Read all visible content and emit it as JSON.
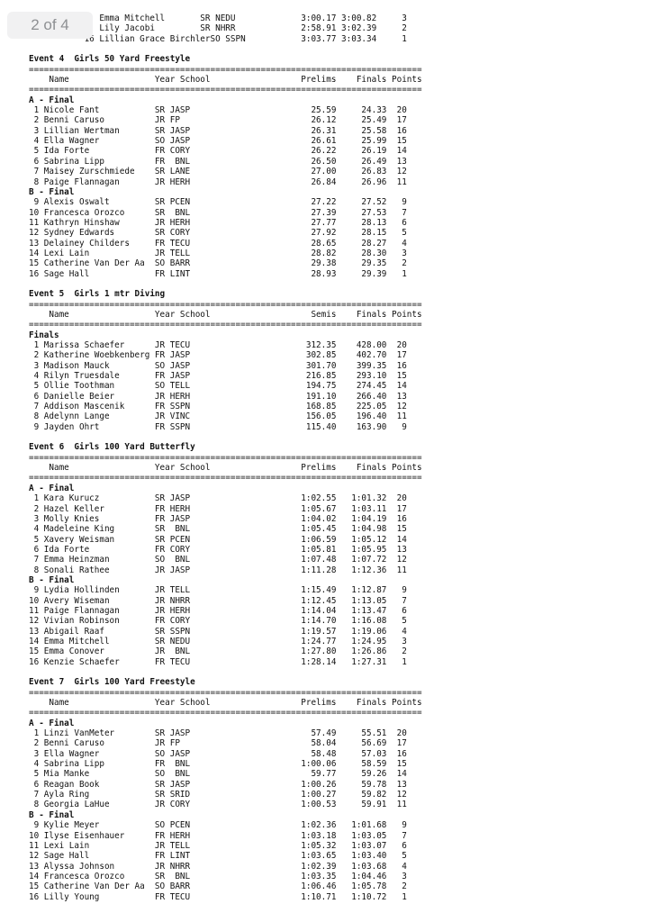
{
  "page_badge": {
    "label": "2 of 4"
  },
  "document": {
    "continuation_rows": [
      {
        "rank": "",
        "name": "Emma Mitchell",
        "year": "SR",
        "school": "NEDU",
        "seed": "3:00.17",
        "finals": "3:00.82",
        "points": "3"
      },
      {
        "rank": "",
        "name": "Lily Jacobi",
        "year": "SR",
        "school": "NHRR",
        "seed": "2:58.91",
        "finals": "3:02.39",
        "points": "2"
      },
      {
        "rank": "16",
        "name": "Lillian Grace Birchler",
        "year": "SO",
        "school": "SSPN",
        "seed": "3:03.77",
        "finals": "3:03.34",
        "points": "1"
      }
    ],
    "events": [
      {
        "title": "Event 4  Girls 50 Yard Freestyle",
        "columns": {
          "name": "Name",
          "year_school": "Year School",
          "seed": "Prelims",
          "finals": "Finals",
          "points": "Points"
        },
        "sections": [
          {
            "label": "A - Final",
            "rows": [
              {
                "rank": "1",
                "name": "Nicole Fant",
                "year": "SR",
                "school": "JASP",
                "seed": "25.59",
                "finals": "24.33",
                "points": "20"
              },
              {
                "rank": "2",
                "name": "Benni Caruso",
                "year": "JR",
                "school": "FP",
                "seed": "26.12",
                "finals": "25.49",
                "points": "17"
              },
              {
                "rank": "3",
                "name": "Lillian Wertman",
                "year": "SR",
                "school": "JASP",
                "seed": "26.31",
                "finals": "25.58",
                "points": "16"
              },
              {
                "rank": "4",
                "name": "Ella Wagner",
                "year": "SO",
                "school": "JASP",
                "seed": "26.61",
                "finals": "25.99",
                "points": "15"
              },
              {
                "rank": "5",
                "name": "Ida Forte",
                "year": "FR",
                "school": "CORY",
                "seed": "26.22",
                "finals": "26.19",
                "points": "14"
              },
              {
                "rank": "6",
                "name": "Sabrina Lipp",
                "year": "FR",
                "school": " BNL",
                "seed": "26.50",
                "finals": "26.49",
                "points": "13"
              },
              {
                "rank": "7",
                "name": "Maisey Zurschmiede",
                "year": "SR",
                "school": "LANE",
                "seed": "27.00",
                "finals": "26.83",
                "points": "12"
              },
              {
                "rank": "8",
                "name": "Paige Flannagan",
                "year": "JR",
                "school": "HERH",
                "seed": "26.84",
                "finals": "26.96",
                "points": "11"
              }
            ]
          },
          {
            "label": "B - Final",
            "rows": [
              {
                "rank": "9",
                "name": "Alexis Oswalt",
                "year": "SR",
                "school": "PCEN",
                "seed": "27.22",
                "finals": "27.52",
                "points": "9"
              },
              {
                "rank": "10",
                "name": "Francesca Orozco",
                "year": "SR",
                "school": " BNL",
                "seed": "27.39",
                "finals": "27.53",
                "points": "7"
              },
              {
                "rank": "11",
                "name": "Kathryn Hinshaw",
                "year": "JR",
                "school": "HERH",
                "seed": "27.77",
                "finals": "28.13",
                "points": "6"
              },
              {
                "rank": "12",
                "name": "Sydney Edwards",
                "year": "SR",
                "school": "CORY",
                "seed": "27.92",
                "finals": "28.15",
                "points": "5"
              },
              {
                "rank": "13",
                "name": "Delainey Childers",
                "year": "FR",
                "school": "TECU",
                "seed": "28.65",
                "finals": "28.27",
                "points": "4"
              },
              {
                "rank": "14",
                "name": "Lexi Lain",
                "year": "JR",
                "school": "TELL",
                "seed": "28.82",
                "finals": "28.30",
                "points": "3"
              },
              {
                "rank": "15",
                "name": "Catherine Van Der Aa",
                "year": "SO",
                "school": "BARR",
                "seed": "29.38",
                "finals": "29.35",
                "points": "2"
              },
              {
                "rank": "16",
                "name": "Sage Hall",
                "year": "FR",
                "school": "LINT",
                "seed": "28.93",
                "finals": "29.39",
                "points": "1"
              }
            ]
          }
        ]
      },
      {
        "title": "Event 5  Girls 1 mtr Diving",
        "columns": {
          "name": "Name",
          "year_school": "Year School",
          "seed": "Semis",
          "finals": "Finals",
          "points": "Points"
        },
        "sections": [
          {
            "label": "Finals",
            "rows": [
              {
                "rank": "1",
                "name": "Marissa Schaefer",
                "year": "JR",
                "school": "TECU",
                "seed": "312.35",
                "finals": "428.00",
                "points": "20"
              },
              {
                "rank": "2",
                "name": "Katherine Woebkenberg",
                "year": "FR",
                "school": "JASP",
                "seed": "302.85",
                "finals": "402.70",
                "points": "17"
              },
              {
                "rank": "3",
                "name": "Madison Mauck",
                "year": "SO",
                "school": "JASP",
                "seed": "301.70",
                "finals": "399.35",
                "points": "16"
              },
              {
                "rank": "4",
                "name": "Rilyn Truesdale",
                "year": "FR",
                "school": "JASP",
                "seed": "216.85",
                "finals": "293.10",
                "points": "15"
              },
              {
                "rank": "5",
                "name": "Ollie Toothman",
                "year": "SO",
                "school": "TELL",
                "seed": "194.75",
                "finals": "274.45",
                "points": "14"
              },
              {
                "rank": "6",
                "name": "Danielle Beier",
                "year": "JR",
                "school": "HERH",
                "seed": "191.10",
                "finals": "266.40",
                "points": "13"
              },
              {
                "rank": "7",
                "name": "Addison Mascenik",
                "year": "FR",
                "school": "SSPN",
                "seed": "168.85",
                "finals": "225.05",
                "points": "12"
              },
              {
                "rank": "8",
                "name": "Adelynn Lange",
                "year": "JR",
                "school": "VINC",
                "seed": "156.05",
                "finals": "196.40",
                "points": "11"
              },
              {
                "rank": "9",
                "name": "Jayden Ohrt",
                "year": "FR",
                "school": "SSPN",
                "seed": "115.40",
                "finals": "163.90",
                "points": "9"
              }
            ]
          }
        ]
      },
      {
        "title": "Event 6  Girls 100 Yard Butterfly",
        "columns": {
          "name": "Name",
          "year_school": "Year School",
          "seed": "Prelims",
          "finals": "Finals",
          "points": "Points"
        },
        "sections": [
          {
            "label": "A - Final",
            "rows": [
              {
                "rank": "1",
                "name": "Kara Kurucz",
                "year": "SR",
                "school": "JASP",
                "seed": "1:02.55",
                "finals": "1:01.32",
                "points": "20"
              },
              {
                "rank": "2",
                "name": "Hazel Keller",
                "year": "FR",
                "school": "HERH",
                "seed": "1:05.67",
                "finals": "1:03.11",
                "points": "17"
              },
              {
                "rank": "3",
                "name": "Molly Knies",
                "year": "FR",
                "school": "JASP",
                "seed": "1:04.02",
                "finals": "1:04.19",
                "points": "16"
              },
              {
                "rank": "4",
                "name": "Madeleine King",
                "year": "SR",
                "school": " BNL",
                "seed": "1:05.45",
                "finals": "1:04.98",
                "points": "15"
              },
              {
                "rank": "5",
                "name": "Xavery Weisman",
                "year": "SR",
                "school": "PCEN",
                "seed": "1:06.59",
                "finals": "1:05.12",
                "points": "14"
              },
              {
                "rank": "6",
                "name": "Ida Forte",
                "year": "FR",
                "school": "CORY",
                "seed": "1:05.81",
                "finals": "1:05.95",
                "points": "13"
              },
              {
                "rank": "7",
                "name": "Emma Heinzman",
                "year": "SO",
                "school": " BNL",
                "seed": "1:07.48",
                "finals": "1:07.72",
                "points": "12"
              },
              {
                "rank": "8",
                "name": "Sonali Rathee",
                "year": "JR",
                "school": "JASP",
                "seed": "1:11.28",
                "finals": "1:12.36",
                "points": "11"
              }
            ]
          },
          {
            "label": "B - Final",
            "rows": [
              {
                "rank": "9",
                "name": "Lydia Hollinden",
                "year": "JR",
                "school": "TELL",
                "seed": "1:15.49",
                "finals": "1:12.87",
                "points": "9"
              },
              {
                "rank": "10",
                "name": "Avery Wiseman",
                "year": "JR",
                "school": "NHRR",
                "seed": "1:12.45",
                "finals": "1:13.05",
                "points": "7"
              },
              {
                "rank": "11",
                "name": "Paige Flannagan",
                "year": "JR",
                "school": "HERH",
                "seed": "1:14.04",
                "finals": "1:13.47",
                "points": "6"
              },
              {
                "rank": "12",
                "name": "Vivian Robinson",
                "year": "FR",
                "school": "CORY",
                "seed": "1:14.70",
                "finals": "1:16.08",
                "points": "5"
              },
              {
                "rank": "13",
                "name": "Abigail Raaf",
                "year": "SR",
                "school": "SSPN",
                "seed": "1:19.57",
                "finals": "1:19.06",
                "points": "4"
              },
              {
                "rank": "14",
                "name": "Emma Mitchell",
                "year": "SR",
                "school": "NEDU",
                "seed": "1:24.77",
                "finals": "1:24.95",
                "points": "3"
              },
              {
                "rank": "15",
                "name": "Emma Conover",
                "year": "JR",
                "school": " BNL",
                "seed": "1:27.80",
                "finals": "1:26.86",
                "points": "2"
              },
              {
                "rank": "16",
                "name": "Kenzie Schaefer",
                "year": "FR",
                "school": "TECU",
                "seed": "1:28.14",
                "finals": "1:27.31",
                "points": "1"
              }
            ]
          }
        ]
      },
      {
        "title": "Event 7  Girls 100 Yard Freestyle",
        "columns": {
          "name": "Name",
          "year_school": "Year School",
          "seed": "Prelims",
          "finals": "Finals",
          "points": "Points"
        },
        "sections": [
          {
            "label": "A - Final",
            "rows": [
              {
                "rank": "1",
                "name": "Linzi VanMeter",
                "year": "SR",
                "school": "JASP",
                "seed": "57.49",
                "finals": "55.51",
                "points": "20"
              },
              {
                "rank": "2",
                "name": "Benni Caruso",
                "year": "JR",
                "school": "FP",
                "seed": "58.04",
                "finals": "56.69",
                "points": "17"
              },
              {
                "rank": "3",
                "name": "Ella Wagner",
                "year": "SO",
                "school": "JASP",
                "seed": "58.48",
                "finals": "57.03",
                "points": "16"
              },
              {
                "rank": "4",
                "name": "Sabrina Lipp",
                "year": "FR",
                "school": " BNL",
                "seed": "1:00.06",
                "finals": "58.59",
                "points": "15"
              },
              {
                "rank": "5",
                "name": "Mia Manke",
                "year": "SO",
                "school": " BNL",
                "seed": "59.77",
                "finals": "59.26",
                "points": "14"
              },
              {
                "rank": "6",
                "name": "Reagan Book",
                "year": "SR",
                "school": "JASP",
                "seed": "1:00.26",
                "finals": "59.78",
                "points": "13"
              },
              {
                "rank": "7",
                "name": "Ayla Ring",
                "year": "SR",
                "school": "SRID",
                "seed": "1:00.27",
                "finals": "59.82",
                "points": "12"
              },
              {
                "rank": "8",
                "name": "Georgia LaHue",
                "year": "JR",
                "school": "CORY",
                "seed": "1:00.53",
                "finals": "59.91",
                "points": "11"
              }
            ]
          },
          {
            "label": "B - Final",
            "rows": [
              {
                "rank": "9",
                "name": "Kylie Meyer",
                "year": "SO",
                "school": "PCEN",
                "seed": "1:02.36",
                "finals": "1:01.68",
                "points": "9"
              },
              {
                "rank": "10",
                "name": "Ilyse Eisenhauer",
                "year": "FR",
                "school": "HERH",
                "seed": "1:03.18",
                "finals": "1:03.05",
                "points": "7"
              },
              {
                "rank": "11",
                "name": "Lexi Lain",
                "year": "JR",
                "school": "TELL",
                "seed": "1:05.32",
                "finals": "1:03.07",
                "points": "6"
              },
              {
                "rank": "12",
                "name": "Sage Hall",
                "year": "FR",
                "school": "LINT",
                "seed": "1:03.65",
                "finals": "1:03.40",
                "points": "5"
              },
              {
                "rank": "13",
                "name": "Alyssa Johnson",
                "year": "JR",
                "school": "NHRR",
                "seed": "1:02.39",
                "finals": "1:03.68",
                "points": "4"
              },
              {
                "rank": "14",
                "name": "Francesca Orozco",
                "year": "SR",
                "school": " BNL",
                "seed": "1:03.35",
                "finals": "1:04.46",
                "points": "3"
              },
              {
                "rank": "15",
                "name": "Catherine Van Der Aa",
                "year": "SO",
                "school": "BARR",
                "seed": "1:06.46",
                "finals": "1:05.78",
                "points": "2"
              },
              {
                "rank": "16",
                "name": "Lilly Young",
                "year": "FR",
                "school": "TECU",
                "seed": "1:10.71",
                "finals": "1:10.72",
                "points": "1"
              }
            ]
          }
        ]
      }
    ]
  }
}
